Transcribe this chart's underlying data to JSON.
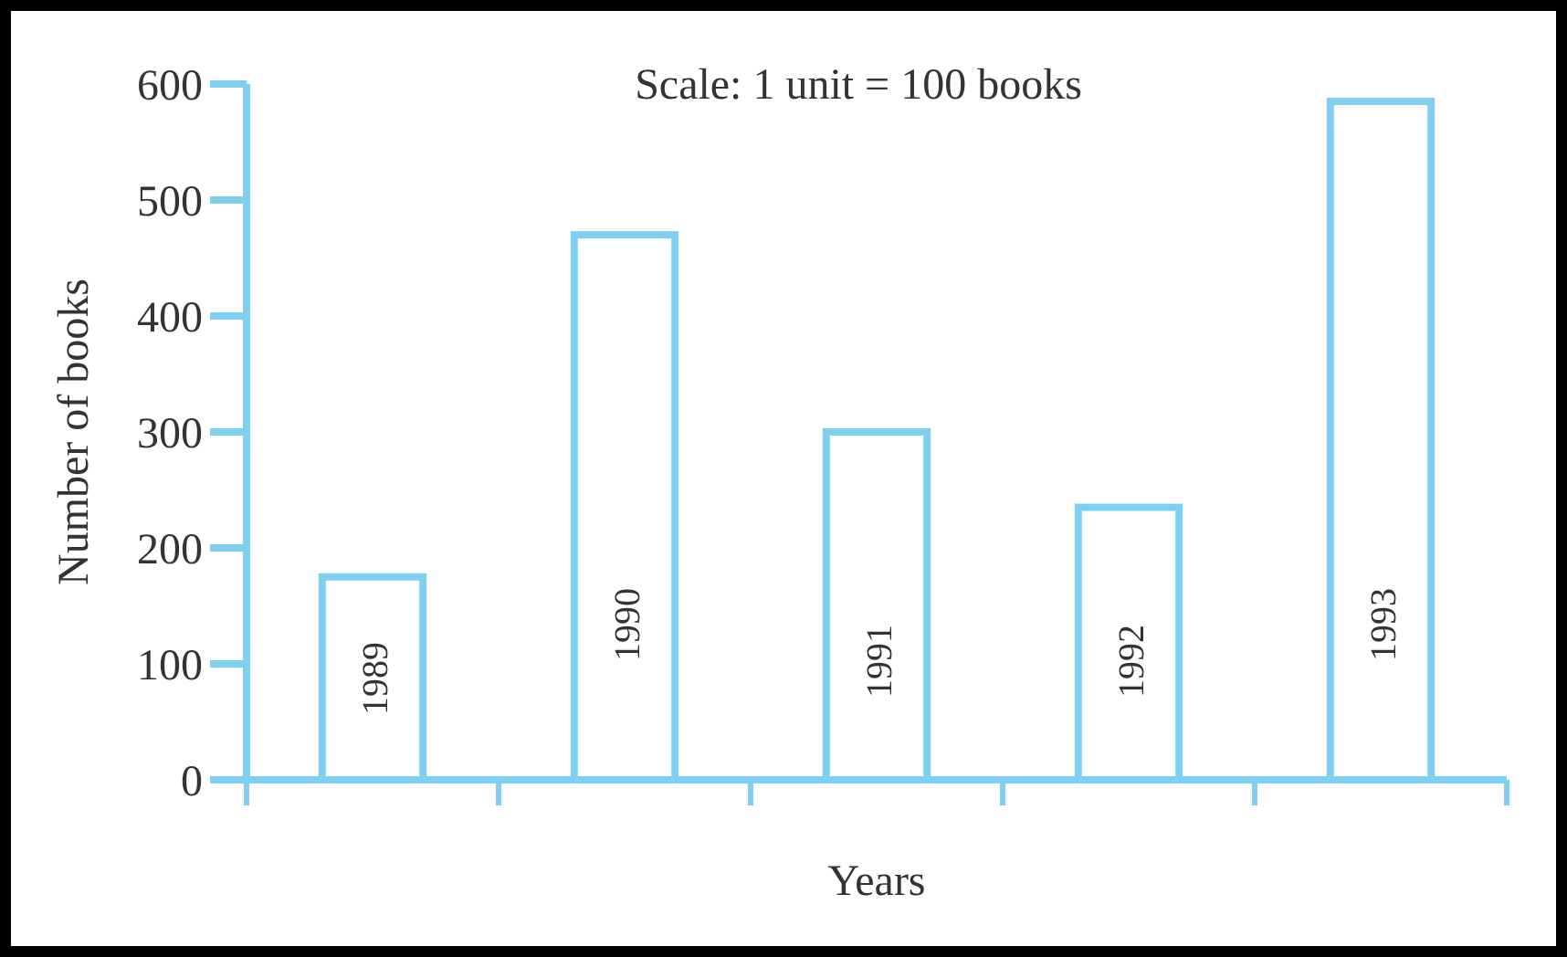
{
  "chart_data": {
    "type": "bar",
    "xlabel": "Years",
    "ylabel": "Number of books",
    "annotations": [
      "Scale: 1 unit = 100 books"
    ],
    "categories": [
      "1989",
      "1990",
      "1991",
      "1992",
      "1993"
    ],
    "values": [
      175,
      470,
      300,
      235,
      585
    ],
    "color": "#7fd0f0",
    "ylim": [
      0,
      600
    ],
    "yticks": [
      0,
      100,
      200,
      300,
      400,
      500,
      600
    ],
    "grid": false
  }
}
